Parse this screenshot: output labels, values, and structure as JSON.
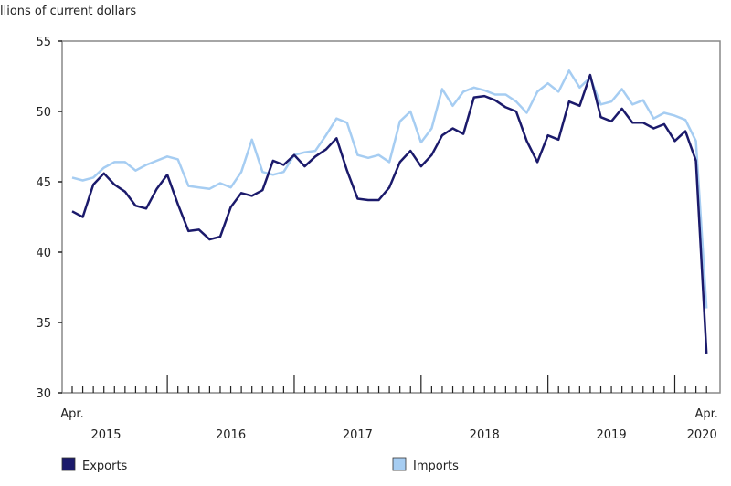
{
  "chart_data": {
    "type": "line",
    "ylabel": "llions of current dollars",
    "ylim": [
      30,
      55
    ],
    "yticks": [
      30,
      35,
      40,
      45,
      50,
      55
    ],
    "x_start": "2015-04",
    "x_end": "2020-04",
    "x_tick_labels": [
      {
        "month": "Apr.",
        "year": "2015"
      },
      {
        "year": "2016"
      },
      {
        "year": "2017"
      },
      {
        "year": "2018"
      },
      {
        "year": "2019"
      },
      {
        "month": "Apr.",
        "year": "2020"
      }
    ],
    "grid": false,
    "legend_position": "bottom",
    "series": [
      {
        "name": "Exports",
        "color": "#1b1a6b",
        "values": [
          42.9,
          42.5,
          44.8,
          45.6,
          44.8,
          44.3,
          43.3,
          43.1,
          44.5,
          45.5,
          43.4,
          41.5,
          41.6,
          40.9,
          41.1,
          43.2,
          44.2,
          44.0,
          44.4,
          46.5,
          46.2,
          46.9,
          46.1,
          46.8,
          47.3,
          48.1,
          45.8,
          43.8,
          43.7,
          43.7,
          44.6,
          46.4,
          47.2,
          46.1,
          46.9,
          48.3,
          48.8,
          48.4,
          51.0,
          51.1,
          50.8,
          50.3,
          50.0,
          47.9,
          46.4,
          48.3,
          48.0,
          50.7,
          50.4,
          52.6,
          49.6,
          49.3,
          50.2,
          49.2,
          49.2,
          48.8,
          49.1,
          47.9,
          48.6,
          46.5,
          32.8
        ]
      },
      {
        "name": "Imports",
        "color": "#a6cdf2",
        "values": [
          45.3,
          45.1,
          45.3,
          46.0,
          46.4,
          46.4,
          45.8,
          46.2,
          46.5,
          46.8,
          46.6,
          44.7,
          44.6,
          44.5,
          44.9,
          44.6,
          45.7,
          48.0,
          45.7,
          45.5,
          45.7,
          46.9,
          47.1,
          47.2,
          48.3,
          49.5,
          49.2,
          46.9,
          46.7,
          46.9,
          46.4,
          49.3,
          50.0,
          47.8,
          48.8,
          51.6,
          50.4,
          51.4,
          51.7,
          51.5,
          51.2,
          51.2,
          50.7,
          49.9,
          51.4,
          52.0,
          51.4,
          52.9,
          51.7,
          52.4,
          50.5,
          50.7,
          51.6,
          50.5,
          50.8,
          49.5,
          49.9,
          49.7,
          49.4,
          47.9,
          36.0
        ]
      }
    ]
  }
}
